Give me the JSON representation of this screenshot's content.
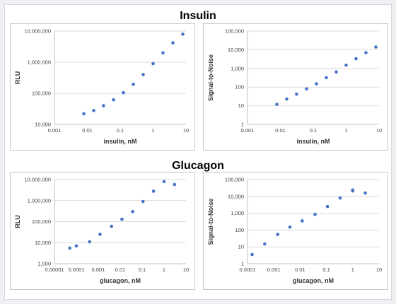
{
  "sections": {
    "insulin": "Insulin",
    "glucagon": "Glucagon"
  },
  "colors": {
    "marker": "#4472c4",
    "grid": "#d9d9d9"
  },
  "chart_data": [
    {
      "id": "insulin-rlu",
      "type": "scatter",
      "xlabel": "insulin, nM",
      "ylabel": "RLU",
      "xscale": "log",
      "yscale": "log",
      "xlim": [
        0.001,
        10
      ],
      "ylim": [
        10000,
        10000000
      ],
      "x_ticks": [
        0.001,
        0.01,
        0.1,
        1,
        10
      ],
      "x_tick_labels": [
        "0.001",
        "0.01",
        "0.1",
        "1",
        "10"
      ],
      "y_ticks": [
        10000,
        100000,
        1000000,
        10000000
      ],
      "y_tick_labels": [
        "10,000",
        "100,000",
        "1,000,000",
        "10,000,000"
      ],
      "grid": true,
      "x": [
        0.0078,
        0.0156,
        0.031,
        0.0625,
        0.125,
        0.25,
        0.5,
        1,
        2,
        4,
        8
      ],
      "y": [
        22000,
        28000,
        40000,
        62000,
        105000,
        195000,
        400000,
        900000,
        2000000,
        4200000,
        8000000
      ]
    },
    {
      "id": "insulin-sn",
      "type": "scatter",
      "xlabel": "insulin, nM",
      "ylabel": "Signal-to-Noise",
      "xscale": "log",
      "yscale": "log",
      "xlim": [
        0.001,
        10
      ],
      "ylim": [
        1,
        100000
      ],
      "x_ticks": [
        0.001,
        0.01,
        0.1,
        1,
        10
      ],
      "x_tick_labels": [
        "0.001",
        "0.01",
        "0.1",
        "1",
        "10"
      ],
      "y_ticks": [
        1,
        10,
        100,
        1000,
        10000,
        100000
      ],
      "y_tick_labels": [
        "1",
        "10",
        "100",
        "1,000",
        "10,000",
        "100,000"
      ],
      "grid": true,
      "x": [
        0.0078,
        0.0156,
        0.031,
        0.0625,
        0.125,
        0.25,
        0.5,
        1,
        2,
        4,
        8
      ],
      "y": [
        12,
        23,
        42,
        80,
        150,
        320,
        650,
        1500,
        3300,
        7000,
        14000
      ]
    },
    {
      "id": "glucagon-rlu",
      "type": "scatter",
      "xlabel": "glucagon, nM",
      "ylabel": "RLU",
      "xscale": "log",
      "yscale": "log",
      "xlim": [
        1e-05,
        10
      ],
      "ylim": [
        1000,
        10000000
      ],
      "x_ticks": [
        1e-05,
        0.0001,
        0.001,
        0.01,
        0.1,
        1,
        10
      ],
      "x_tick_labels": [
        "0.00001",
        "0.0001",
        "0.001",
        "0.01",
        "0.1",
        "1",
        "10"
      ],
      "y_ticks": [
        1000,
        10000,
        100000,
        1000000,
        10000000
      ],
      "y_tick_labels": [
        "1,000",
        "10,000",
        "100,000",
        "1,000,000",
        "10,000,000"
      ],
      "grid": true,
      "x": [
        5e-05,
        0.0001,
        0.0004,
        0.0012,
        0.004,
        0.012,
        0.037,
        0.11,
        0.33,
        1,
        3
      ],
      "y": [
        5500,
        7000,
        11000,
        25000,
        60000,
        130000,
        300000,
        900000,
        2800000,
        8000000,
        5800000
      ]
    },
    {
      "id": "glucagon-sn",
      "type": "scatter",
      "xlabel": "glucagon, nM",
      "ylabel": "Signal-to-Noise",
      "xscale": "log",
      "yscale": "log",
      "xlim": [
        0.0001,
        10
      ],
      "ylim": [
        1,
        100000
      ],
      "x_ticks": [
        0.0001,
        0.001,
        0.01,
        0.1,
        1,
        10
      ],
      "x_tick_labels": [
        "0.0001",
        "0.001",
        "0.01",
        "0.1",
        "1",
        "10"
      ],
      "y_ticks": [
        1,
        10,
        100,
        1000,
        10000,
        100000
      ],
      "y_tick_labels": [
        "1",
        "10",
        "100",
        "1,000",
        "10,000",
        "100,000"
      ],
      "grid": true,
      "x": [
        0.00015,
        0.00045,
        0.0014,
        0.0041,
        0.012,
        0.037,
        0.11,
        0.33,
        1,
        1,
        3
      ],
      "y": [
        3.5,
        15,
        55,
        150,
        350,
        850,
        2500,
        8000,
        21000,
        24000,
        16000
      ]
    }
  ]
}
